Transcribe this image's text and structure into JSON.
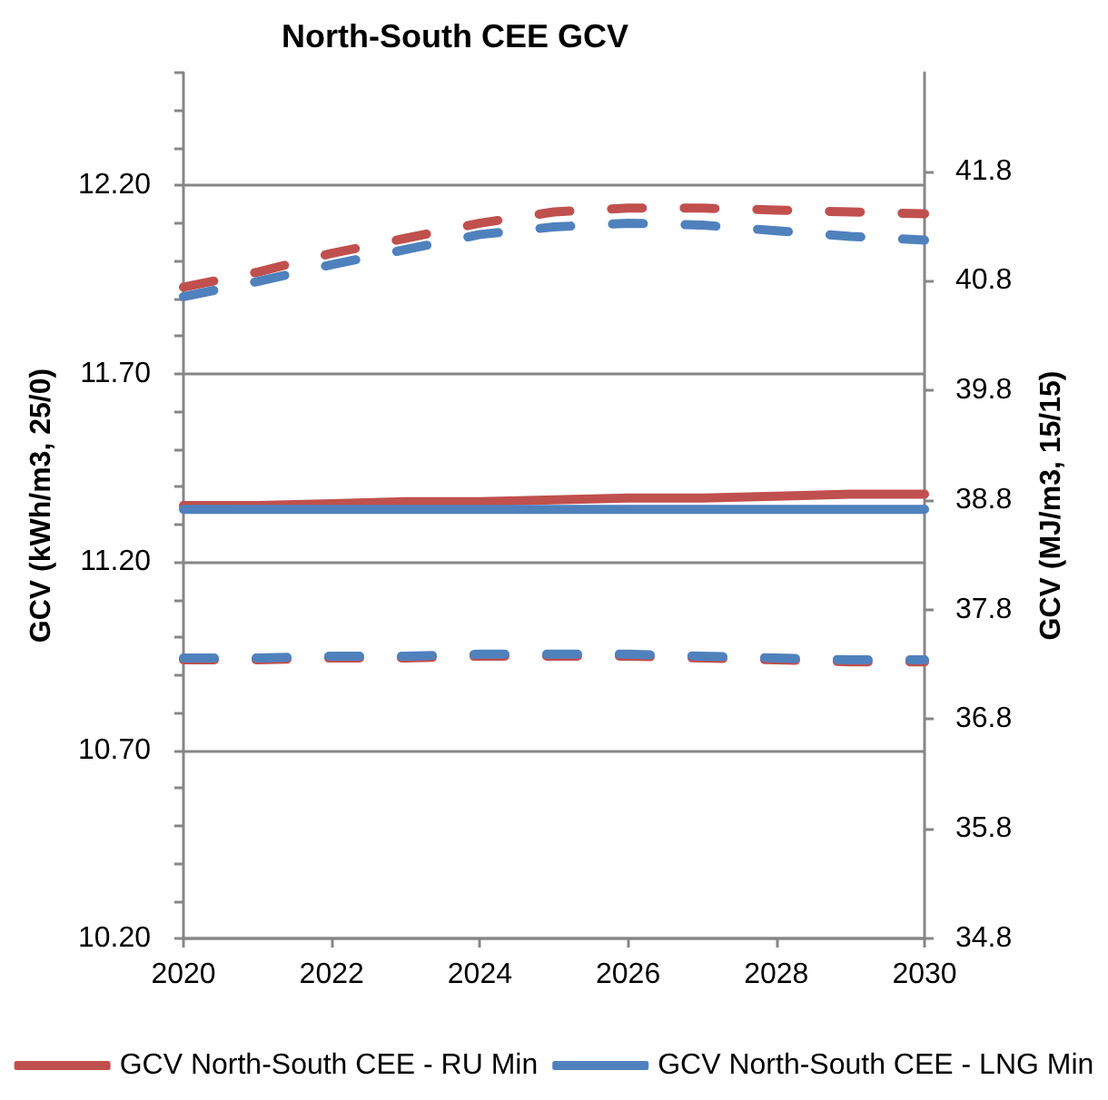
{
  "chart_data": {
    "type": "line",
    "title": "North-South CEE GCV",
    "ylabel": "GCV (kWh/m3, 25/0)",
    "y2label": "GCV (MJ/m3, 15/15)",
    "x": [
      2020,
      2021,
      2022,
      2023,
      2024,
      2025,
      2026,
      2027,
      2028,
      2029,
      2030
    ],
    "xlim": [
      2020,
      2030
    ],
    "xticks": [
      2020,
      2022,
      2024,
      2026,
      2028,
      2030
    ],
    "ylim": [
      10.2,
      12.5
    ],
    "yticks": [
      {
        "value": 10.2,
        "label": "10.20"
      },
      {
        "value": 10.3,
        "label": null
      },
      {
        "value": 10.4,
        "label": null
      },
      {
        "value": 10.5,
        "label": null
      },
      {
        "value": 10.6,
        "label": null
      },
      {
        "value": 10.7,
        "label": "10.70"
      },
      {
        "value": 10.8,
        "label": null
      },
      {
        "value": 10.9,
        "label": null
      },
      {
        "value": 11.0,
        "label": null
      },
      {
        "value": 11.1,
        "label": null
      },
      {
        "value": 11.2,
        "label": "11.20"
      },
      {
        "value": 11.3,
        "label": null
      },
      {
        "value": 11.4,
        "label": null
      },
      {
        "value": 11.5,
        "label": null
      },
      {
        "value": 11.6,
        "label": null
      },
      {
        "value": 11.7,
        "label": "11.70"
      },
      {
        "value": 11.8,
        "label": null
      },
      {
        "value": 11.9,
        "label": null
      },
      {
        "value": 12.0,
        "label": null
      },
      {
        "value": 12.1,
        "label": null
      },
      {
        "value": 12.2,
        "label": "12.20"
      },
      {
        "value": 12.3,
        "label": null
      },
      {
        "value": 12.4,
        "label": null
      },
      {
        "value": 12.5,
        "label": null
      }
    ],
    "y2lim": [
      34.8,
      42.7
    ],
    "y2ticks": [
      34.8,
      35.8,
      36.8,
      37.8,
      38.8,
      39.8,
      40.8,
      41.8
    ],
    "grid": "y",
    "legend": "bottom",
    "marker": "none",
    "series": [
      {
        "name": "GCV North-South CEE - RU Min",
        "color": "#c0504d",
        "line_style": "solid",
        "values": [
          11.35,
          11.35,
          11.355,
          11.36,
          11.36,
          11.365,
          11.37,
          11.37,
          11.375,
          11.38,
          11.38
        ]
      },
      {
        "name": "GCV North-South CEE - LNG Min",
        "color": "#4f81bd",
        "line_style": "solid",
        "values": [
          11.34,
          11.34,
          11.34,
          11.34,
          11.34,
          11.34,
          11.34,
          11.34,
          11.34,
          11.34,
          11.34
        ]
      },
      {
        "color": "#c0504d",
        "line_style": "dashed",
        "values": [
          11.93,
          11.97,
          12.02,
          12.06,
          12.1,
          12.13,
          12.14,
          12.14,
          12.135,
          12.13,
          12.125
        ]
      },
      {
        "color": "#4f81bd",
        "line_style": "dashed",
        "values": [
          11.905,
          11.945,
          11.99,
          12.03,
          12.07,
          12.09,
          12.1,
          12.095,
          12.08,
          12.065,
          12.055
        ]
      },
      {
        "color": "#c0504d",
        "line_style": "dashed",
        "values": [
          10.94,
          10.94,
          10.945,
          10.945,
          10.95,
          10.95,
          10.95,
          10.945,
          10.94,
          10.935,
          10.935
        ]
      },
      {
        "color": "#4f81bd",
        "line_style": "dashed",
        "values": [
          10.945,
          10.945,
          10.95,
          10.95,
          10.955,
          10.955,
          10.955,
          10.95,
          10.945,
          10.94,
          10.94
        ]
      }
    ]
  }
}
